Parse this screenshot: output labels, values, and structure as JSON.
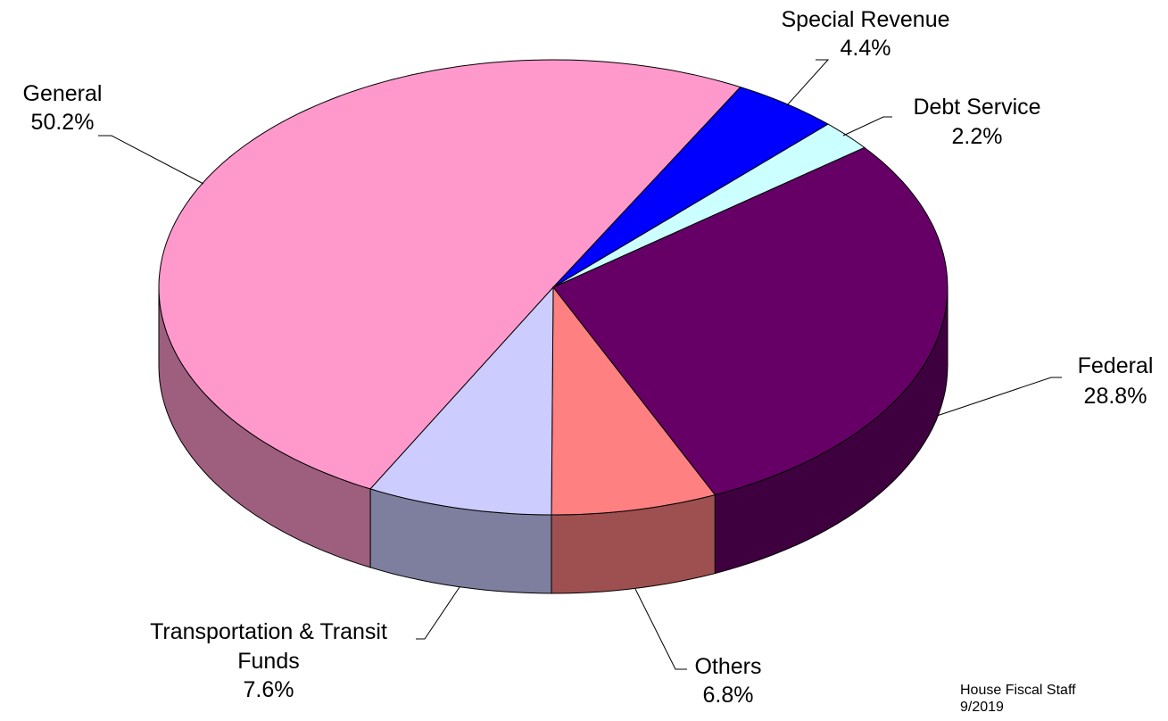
{
  "chart_data": {
    "type": "pie",
    "style": "3d-exploded-none",
    "slices": [
      {
        "name": "General",
        "value": 50.2,
        "label_value": "50.2%",
        "color": "#ff99cc"
      },
      {
        "name": "Special Revenue",
        "value": 4.4,
        "label_value": "4.4%",
        "color": "#0000ff"
      },
      {
        "name": "Debt Service",
        "value": 2.2,
        "label_value": "2.2%",
        "color": "#ccffff"
      },
      {
        "name": "Federal",
        "value": 28.8,
        "label_value": "28.8%",
        "color": "#660066"
      },
      {
        "name": "Others",
        "value": 6.8,
        "label_value": "6.8%",
        "color": "#ff8080"
      },
      {
        "name": "Transportation & Transit Funds",
        "value": 7.6,
        "label_value": "7.6%",
        "color": "#ccccff"
      }
    ]
  },
  "credit": {
    "line1": "House Fiscal Staff",
    "line2": "9/2019"
  }
}
